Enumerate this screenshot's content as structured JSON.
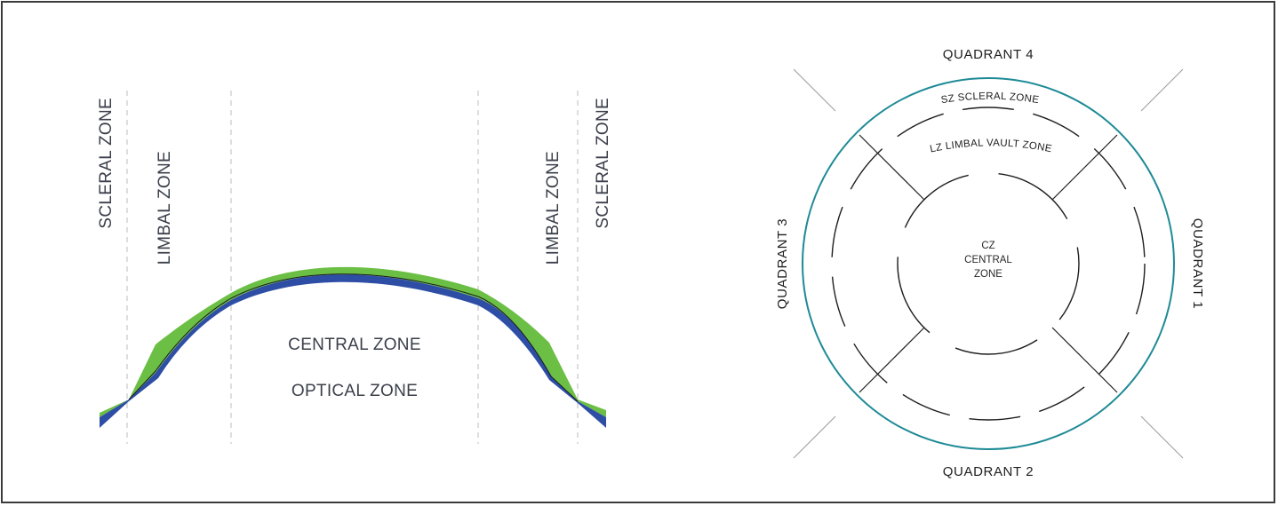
{
  "left_diagram": {
    "zones": {
      "scleral_left": "SCLERAL ZONE",
      "limbal_left": "LIMBAL ZONE",
      "central": "CENTRAL ZONE",
      "optical": "OPTICAL ZONE",
      "limbal_right": "LIMBAL ZONE",
      "scleral_right": "SCLERAL ZONE"
    },
    "colors": {
      "lens": "#6cbf45",
      "cornea": "#2e4ea6",
      "divider": "#bdbdbd"
    }
  },
  "right_diagram": {
    "quadrants": {
      "q1": "QUADRANT 1",
      "q2": "QUADRANT 2",
      "q3": "QUADRANT 3",
      "q4": "QUADRANT 4"
    },
    "scleral_zone_label": "SZ SCLERAL ZONE",
    "limbal_zone_label": "LZ LIMBAL VAULT ZONE",
    "central_zone": {
      "line1": "CZ",
      "line2": "CENTRAL",
      "line3": "ZONE"
    },
    "colors": {
      "outer_ring": "#1e8a96",
      "lines": "#1e1e1e",
      "axis": "#9a9a9a"
    }
  }
}
